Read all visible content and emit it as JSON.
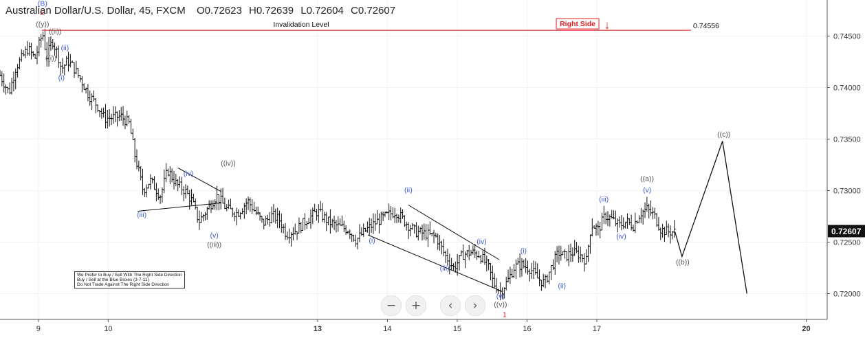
{
  "header": {
    "symbol": "Australian Dollar/U.S. Dollar, 45, FXCM",
    "open": "O0.72623",
    "high": "H0.72639",
    "low": "L0.72604",
    "close": "C0.72607"
  },
  "toolbar": {
    "zoom_out": "−",
    "zoom_in": "+",
    "scroll_left": "‹",
    "scroll_right": "›"
  },
  "notes": [
    "We Prefer to Buy / Sell With The Right Side Direction",
    "Buy / Sell at the Blue Boxes (3-7-11)",
    "Do Not Trade Against The Right Side Direction"
  ],
  "colors": {
    "wave_blue": "#3f5ad6",
    "wave_grey": "#555555",
    "wave_red": "#e01b1b",
    "invalidation_line": "#e03030",
    "price_bars": "#111111",
    "grid": "#f3f3f3"
  },
  "chart_data": {
    "type": "ohlc",
    "timeframe": "45",
    "ylim": [
      0.7175,
      0.7485
    ],
    "yticks": [
      0.72,
      0.725,
      0.73,
      0.735,
      0.74,
      0.745
    ],
    "ytick_labels": [
      "0.72000",
      "0.72500",
      "0.73000",
      "0.73500",
      "0.74000",
      "0.74500"
    ],
    "xlim": [
      8.45,
      20.3
    ],
    "xticks": [
      9,
      10,
      13,
      14,
      15,
      16,
      17,
      20
    ],
    "xtick_labels": [
      "9",
      "10",
      "13",
      "14",
      "15",
      "16",
      "17",
      "20"
    ],
    "last_price": 0.72607,
    "last_price_label": "0.72607",
    "invalidation": {
      "label": "Invalidation Level",
      "value": 0.74556,
      "value_label": "0.74556",
      "x_start": 9.05,
      "x_end": 18.35
    },
    "right_side_label": "Right Side",
    "right_side_arrow": "↓",
    "price_path": [
      [
        8.45,
        0.7412
      ],
      [
        8.58,
        0.7395
      ],
      [
        8.68,
        0.742
      ],
      [
        8.85,
        0.7438
      ],
      [
        8.95,
        0.7428
      ],
      [
        9.06,
        0.7453
      ],
      [
        9.12,
        0.743
      ],
      [
        9.2,
        0.7446
      ],
      [
        9.28,
        0.7432
      ],
      [
        9.33,
        0.7418
      ],
      [
        9.42,
        0.7426
      ],
      [
        9.5,
        0.742
      ],
      [
        9.62,
        0.7406
      ],
      [
        9.72,
        0.7393
      ],
      [
        9.85,
        0.7382
      ],
      [
        9.95,
        0.737
      ],
      [
        10.08,
        0.7371
      ],
      [
        10.18,
        0.7372
      ],
      [
        10.3,
        0.7365
      ],
      [
        10.38,
        0.7335
      ],
      [
        10.5,
        0.73
      ],
      [
        10.6,
        0.731
      ],
      [
        10.75,
        0.7295
      ],
      [
        10.85,
        0.732
      ],
      [
        10.98,
        0.7306
      ],
      [
        11.1,
        0.73
      ],
      [
        11.2,
        0.729
      ],
      [
        11.3,
        0.727
      ],
      [
        11.4,
        0.728
      ],
      [
        11.55,
        0.7295
      ],
      [
        11.7,
        0.7282
      ],
      [
        11.85,
        0.7278
      ],
      [
        12.0,
        0.729
      ],
      [
        12.1,
        0.728
      ],
      [
        12.22,
        0.7268
      ],
      [
        12.35,
        0.7276
      ],
      [
        12.45,
        0.7272
      ],
      [
        12.55,
        0.7258
      ],
      [
        12.7,
        0.7262
      ],
      [
        12.85,
        0.7272
      ],
      [
        13.0,
        0.728
      ],
      [
        13.15,
        0.727
      ],
      [
        13.3,
        0.7265
      ],
      [
        13.45,
        0.7262
      ],
      [
        13.55,
        0.7252
      ],
      [
        13.7,
        0.7262
      ],
      [
        13.85,
        0.727
      ],
      [
        14.0,
        0.7276
      ],
      [
        14.12,
        0.728
      ],
      [
        14.25,
        0.727
      ],
      [
        14.4,
        0.726
      ],
      [
        14.55,
        0.7258
      ],
      [
        14.7,
        0.7255
      ],
      [
        14.82,
        0.7238
      ],
      [
        14.95,
        0.7225
      ],
      [
        15.08,
        0.7238
      ],
      [
        15.2,
        0.724
      ],
      [
        15.32,
        0.7238
      ],
      [
        15.45,
        0.7225
      ],
      [
        15.52,
        0.721
      ],
      [
        15.62,
        0.7202
      ],
      [
        15.72,
        0.7212
      ],
      [
        15.82,
        0.7226
      ],
      [
        15.92,
        0.7228
      ],
      [
        16.05,
        0.7224
      ],
      [
        16.15,
        0.7215
      ],
      [
        16.25,
        0.721
      ],
      [
        16.35,
        0.7226
      ],
      [
        16.45,
        0.724
      ],
      [
        16.55,
        0.7236
      ],
      [
        16.65,
        0.724
      ],
      [
        16.75,
        0.7238
      ],
      [
        16.85,
        0.7232
      ],
      [
        16.92,
        0.7268
      ],
      [
        17.02,
        0.7262
      ],
      [
        17.12,
        0.7276
      ],
      [
        17.22,
        0.7272
      ],
      [
        17.32,
        0.7266
      ],
      [
        17.42,
        0.727
      ],
      [
        17.52,
        0.7266
      ],
      [
        17.62,
        0.7278
      ],
      [
        17.72,
        0.7282
      ],
      [
        17.82,
        0.7276
      ],
      [
        17.92,
        0.7262
      ],
      [
        18.02,
        0.726
      ],
      [
        18.12,
        0.726
      ]
    ],
    "projection": [
      [
        18.12,
        0.726
      ],
      [
        18.22,
        0.7236
      ],
      [
        18.8,
        0.7348
      ],
      [
        19.15,
        0.72
      ]
    ],
    "channels": [
      [
        [
          10.42,
          0.728
        ],
        [
          11.62,
          0.7288
        ]
      ],
      [
        [
          11.0,
          0.7322
        ],
        [
          11.62,
          0.7299
        ]
      ],
      [
        [
          13.72,
          0.7257
        ],
        [
          15.65,
          0.7202
        ]
      ],
      [
        [
          14.3,
          0.7286
        ],
        [
          15.6,
          0.7233
        ]
      ]
    ],
    "wave_labels": [
      {
        "text": "(B)",
        "x": 9.06,
        "y": 0.74795,
        "color": "blue"
      },
      {
        "text": "E",
        "x": 9.06,
        "y": 0.74705,
        "color": "red"
      },
      {
        "text": "((y))",
        "x": 9.06,
        "y": 0.74595,
        "color": "grey"
      },
      {
        "text": "((ii))",
        "x": 9.24,
        "y": 0.74525,
        "color": "grey"
      },
      {
        "text": "((i))",
        "x": 9.18,
        "y": 0.74265,
        "color": "grey"
      },
      {
        "text": "(ii)",
        "x": 9.38,
        "y": 0.74365,
        "color": "blue"
      },
      {
        "text": "(i)",
        "x": 9.33,
        "y": 0.74075,
        "color": "blue"
      },
      {
        "text": "(iii)",
        "x": 10.48,
        "y": 0.72745,
        "color": "blue"
      },
      {
        "text": "(iv)",
        "x": 11.15,
        "y": 0.73145,
        "color": "blue"
      },
      {
        "text": "(v)",
        "x": 11.52,
        "y": 0.72545,
        "color": "blue"
      },
      {
        "text": "((iii))",
        "x": 11.52,
        "y": 0.72455,
        "color": "grey"
      },
      {
        "text": "((iv))",
        "x": 11.72,
        "y": 0.73245,
        "color": "grey"
      },
      {
        "text": "(i)",
        "x": 13.78,
        "y": 0.72495,
        "color": "blue"
      },
      {
        "text": "(ii)",
        "x": 14.3,
        "y": 0.72985,
        "color": "blue"
      },
      {
        "text": "(iii)",
        "x": 14.82,
        "y": 0.72225,
        "color": "blue"
      },
      {
        "text": "(iv)",
        "x": 15.35,
        "y": 0.72485,
        "color": "blue"
      },
      {
        "text": "(v)",
        "x": 15.62,
        "y": 0.71955,
        "color": "blue"
      },
      {
        "text": "((v))",
        "x": 15.62,
        "y": 0.71875,
        "color": "grey"
      },
      {
        "text": "1",
        "x": 15.68,
        "y": 0.71775,
        "color": "red"
      },
      {
        "text": "(i)",
        "x": 15.95,
        "y": 0.72395,
        "color": "blue"
      },
      {
        "text": "(ii)",
        "x": 16.5,
        "y": 0.72055,
        "color": "blue"
      },
      {
        "text": "(iii)",
        "x": 17.1,
        "y": 0.72895,
        "color": "blue"
      },
      {
        "text": "(iv)",
        "x": 17.35,
        "y": 0.72535,
        "color": "blue"
      },
      {
        "text": "(v)",
        "x": 17.72,
        "y": 0.72985,
        "color": "blue"
      },
      {
        "text": "((a))",
        "x": 17.72,
        "y": 0.73095,
        "color": "grey"
      },
      {
        "text": "((b))",
        "x": 18.23,
        "y": 0.72285,
        "color": "grey"
      },
      {
        "text": "((c))",
        "x": 18.82,
        "y": 0.73525,
        "color": "grey"
      }
    ]
  }
}
